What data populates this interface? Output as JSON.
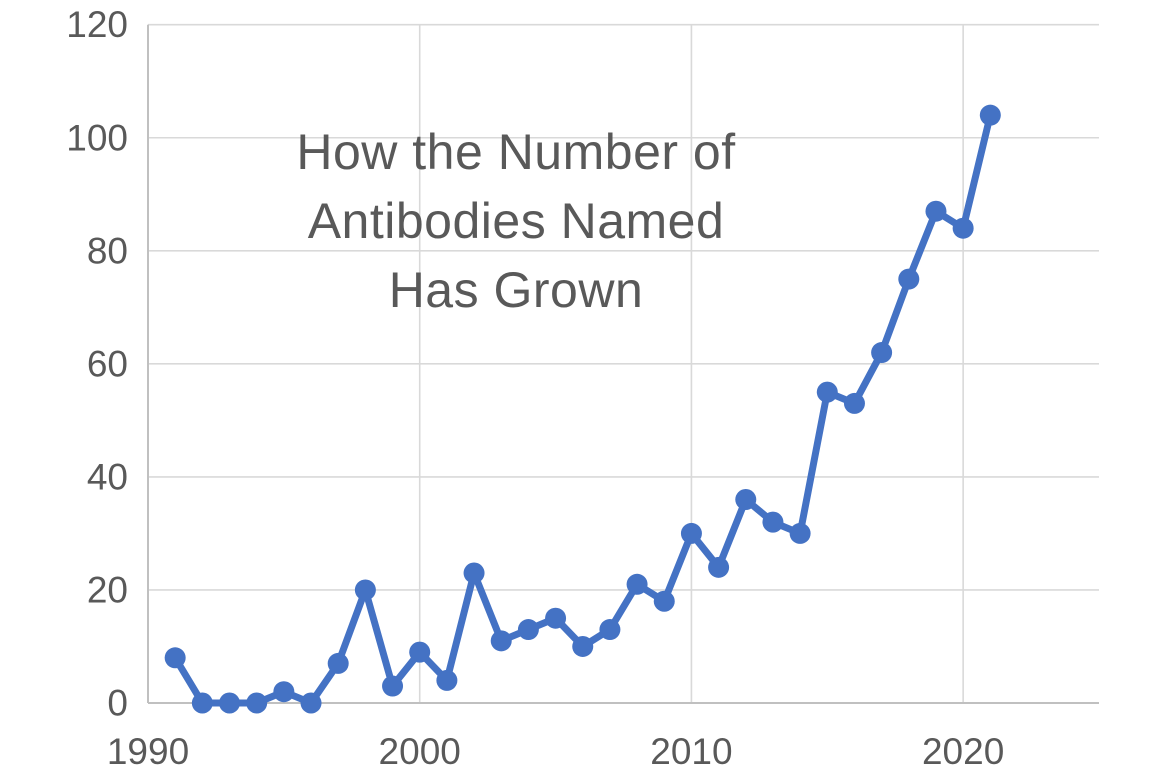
{
  "chart_data": {
    "type": "line",
    "title": "How the Number of Antibodies Named Has Grown",
    "title_lines": [
      "How the Number of",
      "Antibodies Named",
      "Has Grown"
    ],
    "x": [
      1991,
      1992,
      1993,
      1994,
      1995,
      1996,
      1997,
      1998,
      1999,
      2000,
      2001,
      2002,
      2003,
      2004,
      2005,
      2006,
      2007,
      2008,
      2009,
      2010,
      2011,
      2012,
      2013,
      2014,
      2015,
      2016,
      2017,
      2018,
      2019,
      2020,
      2021
    ],
    "values": [
      8,
      0,
      0,
      0,
      2,
      0,
      7,
      20,
      3,
      9,
      4,
      23,
      11,
      13,
      15,
      10,
      13,
      21,
      18,
      30,
      24,
      36,
      32,
      30,
      55,
      53,
      62,
      75,
      87,
      84,
      104
    ],
    "xlabel": "",
    "ylabel": "",
    "xlim": [
      1990,
      2025
    ],
    "ylim": [
      0,
      120
    ],
    "x_ticks": [
      1990,
      2000,
      2010,
      2020
    ],
    "y_ticks": [
      0,
      20,
      40,
      60,
      80,
      100,
      120
    ],
    "grid": true,
    "legend": "none",
    "marker": "circle",
    "colors": {
      "line": "#4472C4",
      "grid": "#D9D9D9",
      "axis": "#C0C0C0",
      "text": "#595959",
      "background": "#FFFFFF"
    }
  }
}
